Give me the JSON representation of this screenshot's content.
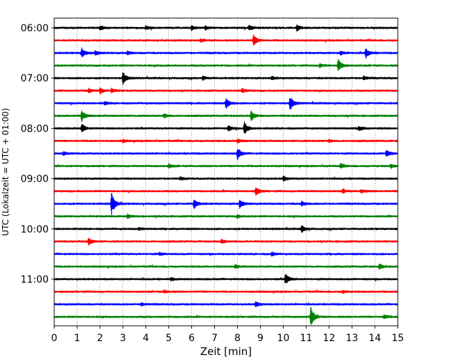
{
  "chart_data": {
    "type": "line",
    "title": "",
    "xlabel": "Zeit  [min]",
    "ylabel": "UTC (Lokalzeit = UTC + 01:00)",
    "xlim": [
      0,
      15
    ],
    "x_ticks": [
      "0",
      "1",
      "2",
      "3",
      "4",
      "5",
      "6",
      "7",
      "8",
      "9",
      "10",
      "11",
      "12",
      "13",
      "14",
      "15"
    ],
    "grid": "vertical dotted",
    "legend": "none",
    "line_colors": [
      "#000000",
      "#ff0000",
      "#0000ff",
      "#008000"
    ],
    "y_ticks": [
      {
        "label": "06:00",
        "row": 0
      },
      {
        "label": "07:00",
        "row": 4
      },
      {
        "label": "08:00",
        "row": 8
      },
      {
        "label": "09:00",
        "row": 12
      },
      {
        "label": "10:00",
        "row": 16
      },
      {
        "label": "11:00",
        "row": 20
      }
    ],
    "series": [
      {
        "start": "06:00",
        "color": "#000000",
        "events": [
          {
            "t": 2.0,
            "a": 0.3
          },
          {
            "t": 4.0,
            "a": 0.3
          },
          {
            "t": 6.0,
            "a": 0.35
          },
          {
            "t": 6.6,
            "a": 0.3
          },
          {
            "t": 8.5,
            "a": 0.35
          },
          {
            "t": 10.6,
            "a": 0.5
          }
        ]
      },
      {
        "start": "06:15",
        "color": "#ff0000",
        "events": [
          {
            "t": 8.7,
            "a": 0.9
          },
          {
            "t": 6.4,
            "a": 0.2
          }
        ]
      },
      {
        "start": "06:30",
        "color": "#0000ff",
        "events": [
          {
            "t": 1.2,
            "a": 0.8
          },
          {
            "t": 1.8,
            "a": 0.4
          },
          {
            "t": 3.2,
            "a": 0.3
          },
          {
            "t": 13.6,
            "a": 0.8
          },
          {
            "t": 12.5,
            "a": 0.3
          }
        ]
      },
      {
        "start": "06:45",
        "color": "#008000",
        "events": [
          {
            "t": 12.4,
            "a": 1.0
          },
          {
            "t": 11.6,
            "a": 0.3
          }
        ]
      },
      {
        "start": "07:00",
        "color": "#000000",
        "events": [
          {
            "t": 3.0,
            "a": 1.0
          },
          {
            "t": 6.5,
            "a": 0.3
          },
          {
            "t": 9.5,
            "a": 0.25
          },
          {
            "t": 13.5,
            "a": 0.3
          }
        ]
      },
      {
        "start": "07:15",
        "color": "#ff0000",
        "events": [
          {
            "t": 1.5,
            "a": 0.35
          },
          {
            "t": 2.0,
            "a": 0.45
          },
          {
            "t": 2.5,
            "a": 0.35
          },
          {
            "t": 8.2,
            "a": 0.35
          }
        ]
      },
      {
        "start": "07:30",
        "color": "#0000ff",
        "events": [
          {
            "t": 7.5,
            "a": 1.0
          },
          {
            "t": 10.3,
            "a": 1.2
          },
          {
            "t": 2.2,
            "a": 0.25
          }
        ]
      },
      {
        "start": "07:45",
        "color": "#008000",
        "events": [
          {
            "t": 1.2,
            "a": 0.9
          },
          {
            "t": 8.6,
            "a": 0.8
          },
          {
            "t": 4.8,
            "a": 0.3
          }
        ]
      },
      {
        "start": "08:00",
        "color": "#000000",
        "events": [
          {
            "t": 1.2,
            "a": 0.7
          },
          {
            "t": 7.6,
            "a": 0.45
          },
          {
            "t": 8.3,
            "a": 1.0
          },
          {
            "t": 13.3,
            "a": 0.4
          }
        ]
      },
      {
        "start": "08:15",
        "color": "#ff0000",
        "events": [
          {
            "t": 8.0,
            "a": 0.3
          },
          {
            "t": 3.0,
            "a": 0.2
          },
          {
            "t": 12.0,
            "a": 0.2
          }
        ]
      },
      {
        "start": "08:30",
        "color": "#0000ff",
        "events": [
          {
            "t": 8.0,
            "a": 1.0
          },
          {
            "t": 14.5,
            "a": 0.6
          },
          {
            "t": 0.4,
            "a": 0.25
          }
        ]
      },
      {
        "start": "08:45",
        "color": "#008000",
        "events": [
          {
            "t": 5.0,
            "a": 0.3
          },
          {
            "t": 12.5,
            "a": 0.35
          },
          {
            "t": 14.7,
            "a": 0.3
          }
        ]
      },
      {
        "start": "09:00",
        "color": "#000000",
        "events": [
          {
            "t": 10.0,
            "a": 0.4
          },
          {
            "t": 5.5,
            "a": 0.2
          }
        ]
      },
      {
        "start": "09:15",
        "color": "#ff0000",
        "events": [
          {
            "t": 8.8,
            "a": 0.7
          },
          {
            "t": 12.6,
            "a": 0.3
          },
          {
            "t": 13.4,
            "a": 0.3
          }
        ]
      },
      {
        "start": "09:30",
        "color": "#0000ff",
        "events": [
          {
            "t": 2.5,
            "a": 1.8
          },
          {
            "t": 6.1,
            "a": 0.8
          },
          {
            "t": 8.1,
            "a": 0.7
          },
          {
            "t": 10.8,
            "a": 0.4
          }
        ]
      },
      {
        "start": "09:45",
        "color": "#008000",
        "events": [
          {
            "t": 3.2,
            "a": 0.35
          },
          {
            "t": 8.0,
            "a": 0.25
          }
        ]
      },
      {
        "start": "10:00",
        "color": "#000000",
        "events": [
          {
            "t": 10.8,
            "a": 0.6
          },
          {
            "t": 3.7,
            "a": 0.2
          }
        ]
      },
      {
        "start": "10:15",
        "color": "#ff0000",
        "events": [
          {
            "t": 1.5,
            "a": 0.6
          },
          {
            "t": 7.3,
            "a": 0.3
          }
        ]
      },
      {
        "start": "10:30",
        "color": "#0000ff",
        "events": [
          {
            "t": 9.5,
            "a": 0.3
          },
          {
            "t": 4.6,
            "a": 0.2
          }
        ]
      },
      {
        "start": "10:45",
        "color": "#008000",
        "events": [
          {
            "t": 7.9,
            "a": 0.3
          },
          {
            "t": 14.2,
            "a": 0.4
          }
        ]
      },
      {
        "start": "11:00",
        "color": "#000000",
        "events": [
          {
            "t": 10.1,
            "a": 0.9
          },
          {
            "t": 5.1,
            "a": 0.2
          }
        ]
      },
      {
        "start": "11:15",
        "color": "#ff0000",
        "events": [
          {
            "t": 4.8,
            "a": 0.2
          },
          {
            "t": 12.6,
            "a": 0.2
          }
        ]
      },
      {
        "start": "11:30",
        "color": "#0000ff",
        "events": [
          {
            "t": 8.8,
            "a": 0.4
          },
          {
            "t": 3.8,
            "a": 0.25
          }
        ]
      },
      {
        "start": "11:45",
        "color": "#008000",
        "events": [
          {
            "t": 11.2,
            "a": 1.6
          },
          {
            "t": 14.4,
            "a": 0.35
          }
        ]
      }
    ]
  }
}
